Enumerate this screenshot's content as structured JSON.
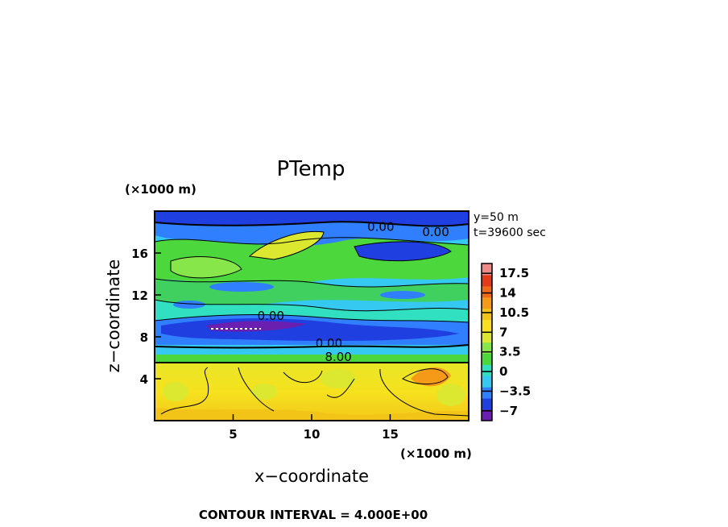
{
  "chart_data": {
    "type": "heatmap",
    "title": "PTemp",
    "xlabel": "x−coordinate",
    "ylabel": "z−coordinate",
    "x_unit": "(×1000 m)",
    "y_unit": "(×1000 m)",
    "xlim": [
      0,
      20
    ],
    "ylim": [
      0,
      20
    ],
    "x_ticks": [
      5,
      10,
      15
    ],
    "y_ticks": [
      4,
      8,
      12,
      16
    ],
    "x_tick_labels": [
      "5",
      "10",
      "15"
    ],
    "y_tick_labels": [
      "4",
      "8",
      "12",
      "16"
    ],
    "info": [
      "y=50 m",
      "t=39600 sec"
    ],
    "colorbar": {
      "range": [
        -8.75,
        19.25
      ],
      "tick_values": [
        -7,
        -3.5,
        0,
        3.5,
        7,
        10.5,
        14,
        17.5
      ],
      "tick_labels": [
        "−7",
        "−3.5",
        "0",
        "3.5",
        "7",
        "10.5",
        "14",
        "17.5"
      ],
      "colors": [
        "#6a1fb0",
        "#1f3fe0",
        "#2f7fff",
        "#35c8f0",
        "#30e0c0",
        "#4cd83c",
        "#86e64a",
        "#dce830",
        "#f8e020",
        "#f2c418",
        "#f59a18",
        "#ee6a18",
        "#e23a1a",
        "#ef8a8a"
      ]
    },
    "contour_labels": [
      {
        "text": "0.00",
        "x": 7.4,
        "z": 9.6
      },
      {
        "text": "0.00",
        "x": 11.1,
        "z": 7.0
      },
      {
        "text": "8.00",
        "x": 11.7,
        "z": 5.7
      },
      {
        "text": "0.00",
        "x": 14.4,
        "z": 18.1
      },
      {
        "text": "0.00",
        "x": 17.9,
        "z": 17.6
      }
    ],
    "contour_interval": "CONTOUR INTERVAL = 4.000E+00"
  }
}
